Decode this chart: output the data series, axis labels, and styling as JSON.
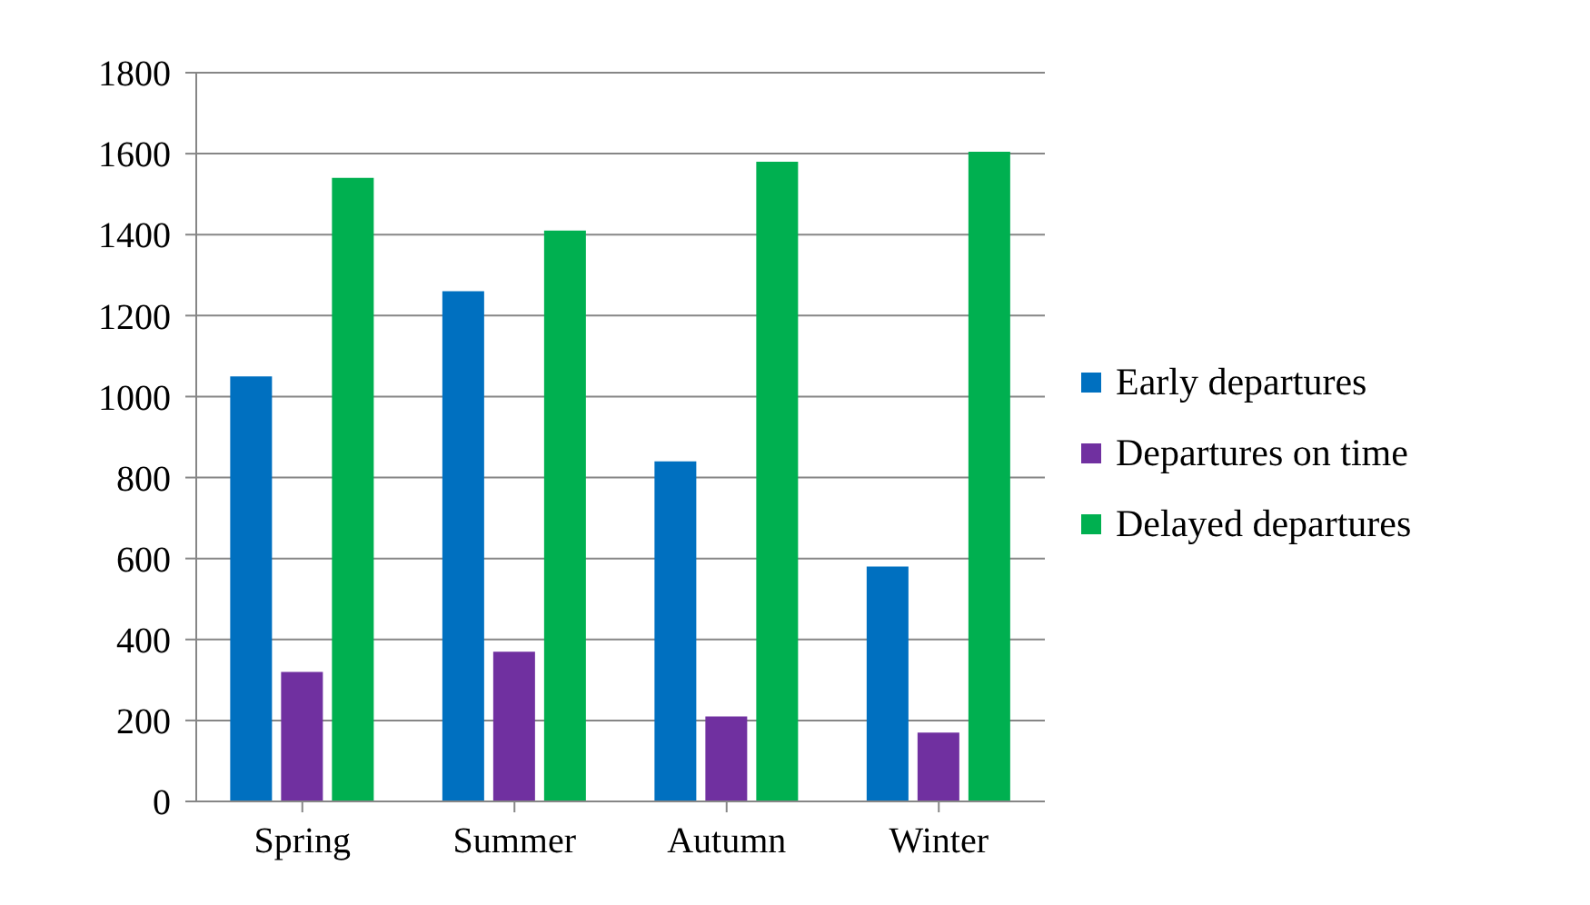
{
  "chart_data": {
    "type": "bar",
    "categories": [
      "Spring",
      "Summer",
      "Autumn",
      "Winter"
    ],
    "series": [
      {
        "name": "Early departures",
        "color": "#0070c0",
        "values": [
          1050,
          1260,
          840,
          580
        ]
      },
      {
        "name": "Departures on time",
        "color": "#7030a0",
        "values": [
          320,
          370,
          210,
          170
        ]
      },
      {
        "name": "Delayed departures",
        "color": "#00b050",
        "values": [
          1540,
          1410,
          1580,
          1605
        ]
      }
    ],
    "ylim": [
      0,
      1800
    ],
    "yticks": [
      0,
      200,
      400,
      600,
      800,
      1000,
      1200,
      1400,
      1600,
      1800
    ],
    "grid": "y",
    "legend": "right"
  }
}
